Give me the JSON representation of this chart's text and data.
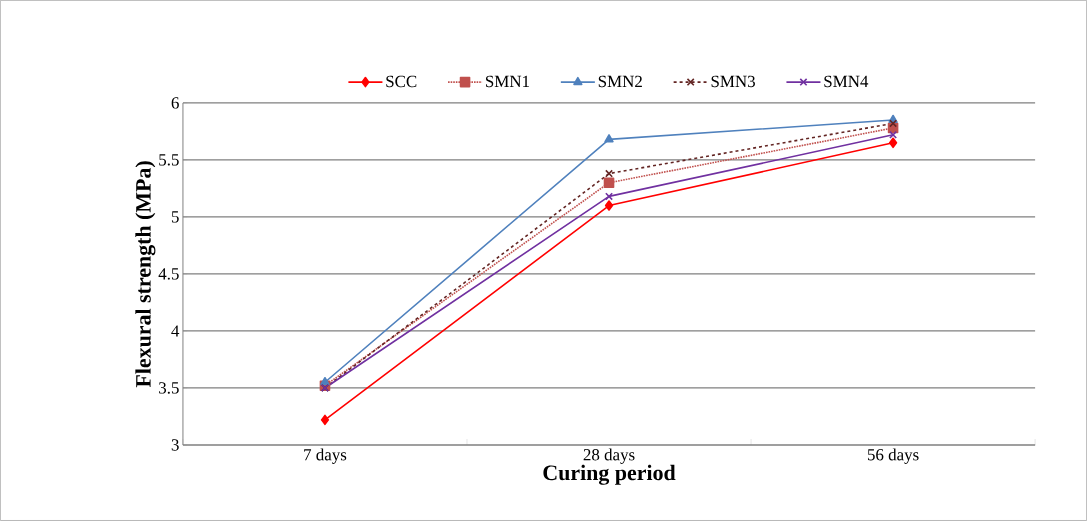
{
  "chart_data": {
    "type": "line",
    "xlabel": "Curing period",
    "ylabel": "Flexural strength (MPa)",
    "categories": [
      "7 days",
      "28 days",
      "56 days"
    ],
    "series": [
      {
        "name": "SCC",
        "color": "#ff0000",
        "values": [
          3.22,
          5.1,
          5.65
        ],
        "marker": "diamond",
        "line_style": "solid"
      },
      {
        "name": "SMN1",
        "color": "#c0504d",
        "values": [
          3.52,
          5.3,
          5.78
        ],
        "marker": "square",
        "line_style": "dotted"
      },
      {
        "name": "SMN2",
        "color": "#4f81bd",
        "values": [
          3.55,
          5.68,
          5.85
        ],
        "marker": "triangle",
        "line_style": "solid"
      },
      {
        "name": "SMN3",
        "color": "#632523",
        "values": [
          3.5,
          5.38,
          5.82
        ],
        "marker": "cross",
        "line_style": "dashed"
      },
      {
        "name": "SMN4",
        "color": "#7030a0",
        "values": [
          3.5,
          5.18,
          5.72
        ],
        "marker": "cross",
        "line_style": "solid"
      }
    ],
    "ylim": [
      3,
      6
    ],
    "yticks": [
      3,
      3.5,
      4,
      4.5,
      5,
      5.5,
      6
    ],
    "grid": "y",
    "legend": "top"
  }
}
